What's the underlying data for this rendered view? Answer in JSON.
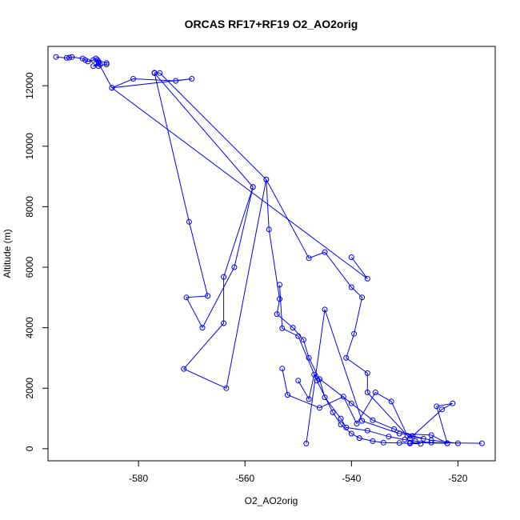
{
  "chart_data": {
    "type": "line",
    "title": "ORCAS RF17+RF19 O2_AO2orig",
    "xlabel": "O2_AO2orig",
    "ylabel": "Altitude (m)",
    "xlim": [
      -597,
      -513
    ],
    "ylim": [
      -400,
      13300
    ],
    "x_ticks": [
      -580,
      -560,
      -540,
      -520
    ],
    "y_ticks": [
      0,
      2000,
      4000,
      6000,
      8000,
      10000,
      12000
    ],
    "grid": false,
    "legend": "none",
    "series_color": "#0000ff",
    "marker": "open-circle",
    "series": [
      {
        "x": [
          -595.5,
          -593.5,
          -593,
          -592.5,
          -590.5,
          -590,
          -589.5,
          -588.5,
          -588,
          -587.5,
          -587.2,
          -587.5,
          -587.7,
          -586,
          -586,
          -588.5,
          -587.5,
          -585,
          -570,
          -573,
          -581,
          -585,
          -537,
          -540
        ],
        "y": [
          12950,
          12920,
          12930,
          12950,
          12900,
          12850,
          12800,
          12850,
          12900,
          12800,
          12700,
          12650,
          12850,
          12750,
          12700,
          12650,
          12750,
          11930,
          12230,
          12160,
          12230,
          11930,
          5620,
          6330
        ]
      },
      {
        "x": [
          -577,
          -576,
          -556,
          -548,
          -545,
          -540,
          -538,
          -539.5,
          -541,
          -537,
          -537,
          -529,
          -523,
          -521,
          -524,
          -522,
          -529
        ],
        "y": [
          12430,
          12420,
          8900,
          6300,
          6500,
          5340,
          5000,
          3800,
          3000,
          2500,
          1860,
          340,
          1300,
          1500,
          1400,
          180,
          200
        ]
      },
      {
        "x": [
          -577,
          -558.5,
          -562,
          -568,
          -571,
          -567,
          -570.5,
          -577
        ],
        "y": [
          12420,
          8650,
          6000,
          4000,
          5000,
          5050,
          7500,
          12420
        ]
      },
      {
        "x": [
          -558.5,
          -564,
          -564,
          -571.5,
          -563.5,
          -556,
          -555.5,
          -553.5,
          -554,
          -551,
          -549,
          -548,
          -546,
          -545,
          -542,
          -541,
          -537,
          -533,
          -530,
          -528,
          -525,
          -515.5
        ],
        "y": [
          8650,
          5680,
          4150,
          2640,
          2000,
          8900,
          7250,
          4950,
          4450,
          4000,
          3600,
          3000,
          2300,
          1700,
          1000,
          700,
          600,
          400,
          300,
          250,
          200,
          180
        ]
      },
      {
        "x": [
          -553.5,
          -553,
          -550,
          -546.5,
          -543.5,
          -542,
          -540,
          -538.5,
          -536,
          -534,
          -531,
          -529,
          -527
        ],
        "y": [
          5420,
          3980,
          3720,
          2250,
          1200,
          800,
          500,
          350,
          250,
          200,
          190,
          170,
          160
        ]
      },
      {
        "x": [
          -550,
          -548,
          -547,
          -540,
          -536,
          -532,
          -528.5,
          -525,
          -520
        ],
        "y": [
          2250,
          1640,
          2450,
          1500,
          940,
          650,
          420,
          280,
          180
        ]
      },
      {
        "x": [
          -553,
          -552,
          -546,
          -541.5,
          -539,
          -535.5,
          -532.5,
          -529.5,
          -526.5
        ],
        "y": [
          2650,
          1780,
          1350,
          1720,
          830,
          1860,
          1560,
          430,
          330
        ]
      },
      {
        "x": [
          -548.5,
          -545,
          -538,
          -531,
          -525,
          -522
        ],
        "y": [
          170,
          4600,
          920,
          500,
          450,
          180
        ]
      }
    ]
  }
}
